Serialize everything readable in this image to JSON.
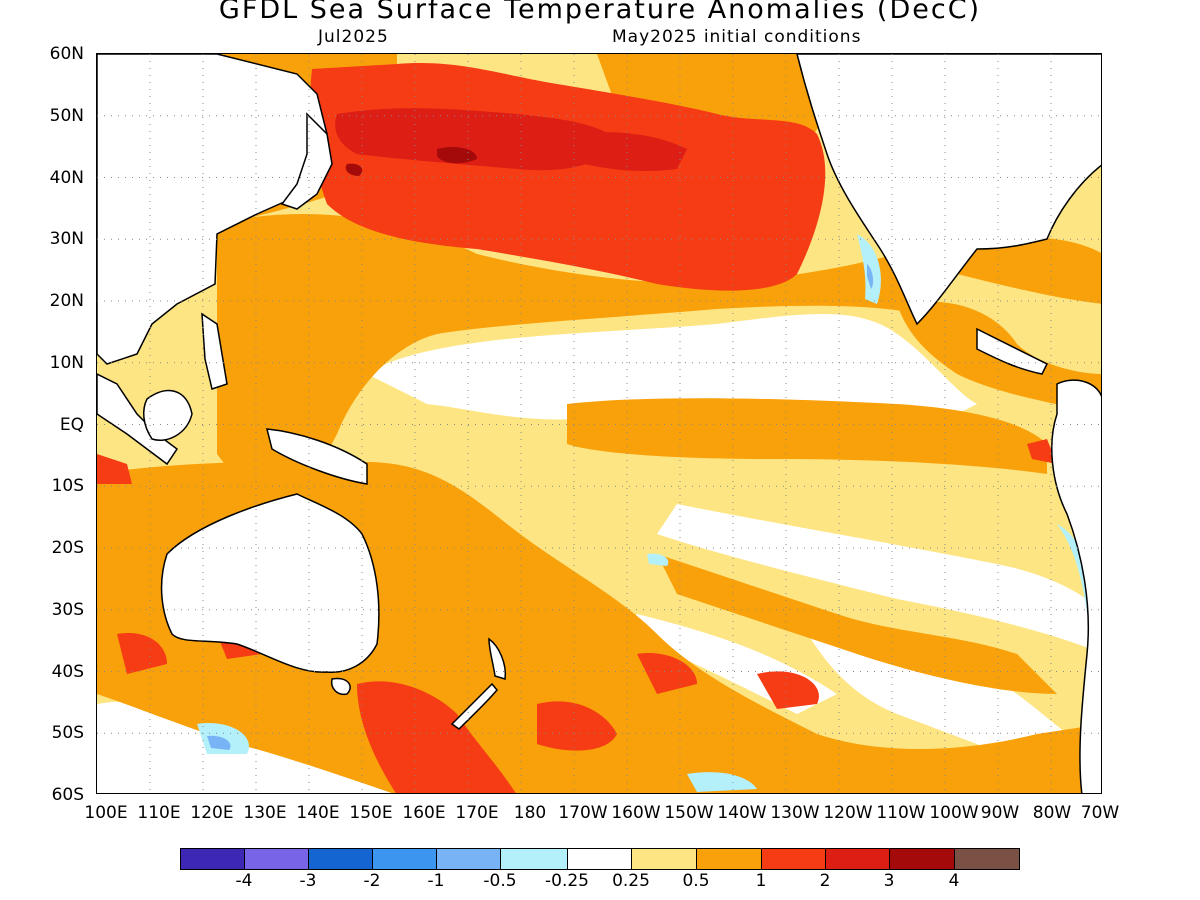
{
  "title": "GFDL Sea Surface Temperature Anomalies (DecC)",
  "subtitle_left": "Jul2025",
  "subtitle_right": "May2025 initial conditions",
  "map": {
    "lat_labels": [
      "60N",
      "50N",
      "40N",
      "30N",
      "20N",
      "10N",
      "EQ",
      "10S",
      "20S",
      "30S",
      "40S",
      "50S",
      "60S"
    ],
    "lon_labels": [
      "100E",
      "110E",
      "120E",
      "130E",
      "140E",
      "150E",
      "160E",
      "170E",
      "180",
      "170W",
      "160W",
      "150W",
      "140W",
      "130W",
      "120W",
      "110W",
      "100W",
      "90W",
      "80W",
      "70W"
    ],
    "lat_range": [
      -60,
      60
    ],
    "lon_range": [
      100,
      290
    ],
    "grid": "dotted",
    "land_color": "#ffffff",
    "coastline_color": "#000000"
  },
  "colorbar": {
    "labels": [
      "-4",
      "-3",
      "-2",
      "-1",
      "-0.5",
      "-0.25",
      "0.25",
      "0.5",
      "1",
      "2",
      "3",
      "4"
    ],
    "colors": [
      "#3c28b4",
      "#7864e6",
      "#1464d2",
      "#3c96f0",
      "#78b4f5",
      "#b4f0fa",
      "#ffffff",
      "#fde583",
      "#f9a10a",
      "#f53c14",
      "#dc1e14",
      "#a50a0a",
      "#7a5144"
    ]
  }
}
